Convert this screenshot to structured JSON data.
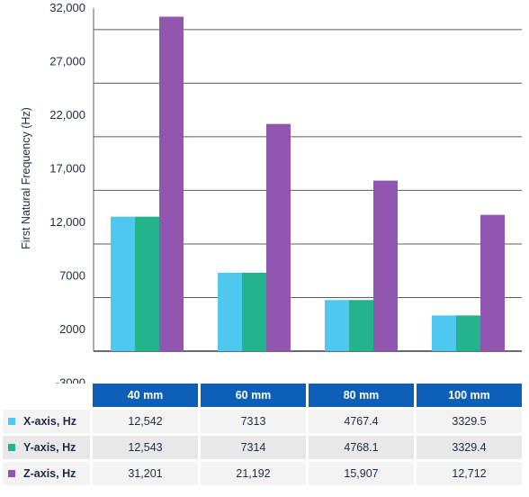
{
  "chart_data": {
    "type": "bar",
    "ylabel": "First Natural Frequency (Hz)",
    "yticks": [
      "32,000",
      "27,000",
      "22,000",
      "17,000",
      "12,000",
      "7000",
      "2000",
      "-3000"
    ],
    "ylim": [
      -3000,
      32000
    ],
    "grid": true,
    "categories": [
      "40 mm",
      "60 mm",
      "80 mm",
      "100 mm"
    ],
    "series": [
      {
        "name": "X-axis, Hz",
        "color": "#4fc8ef",
        "values": [
          12542,
          7313,
          4767.4,
          3329.5
        ],
        "labels": [
          "12,542",
          "7313",
          "4767.4",
          "3329.5"
        ]
      },
      {
        "name": "Y-axis, Hz",
        "color": "#23b48c",
        "values": [
          12543,
          7314,
          4768.1,
          3329.4
        ],
        "labels": [
          "12,543",
          "7314",
          "4768.1",
          "3329.4"
        ]
      },
      {
        "name": "Z-axis, Hz",
        "color": "#9156b0",
        "values": [
          31201,
          21192,
          15907,
          12712
        ],
        "labels": [
          "31,201",
          "21,192",
          "15,907",
          "12,712"
        ]
      }
    ]
  }
}
